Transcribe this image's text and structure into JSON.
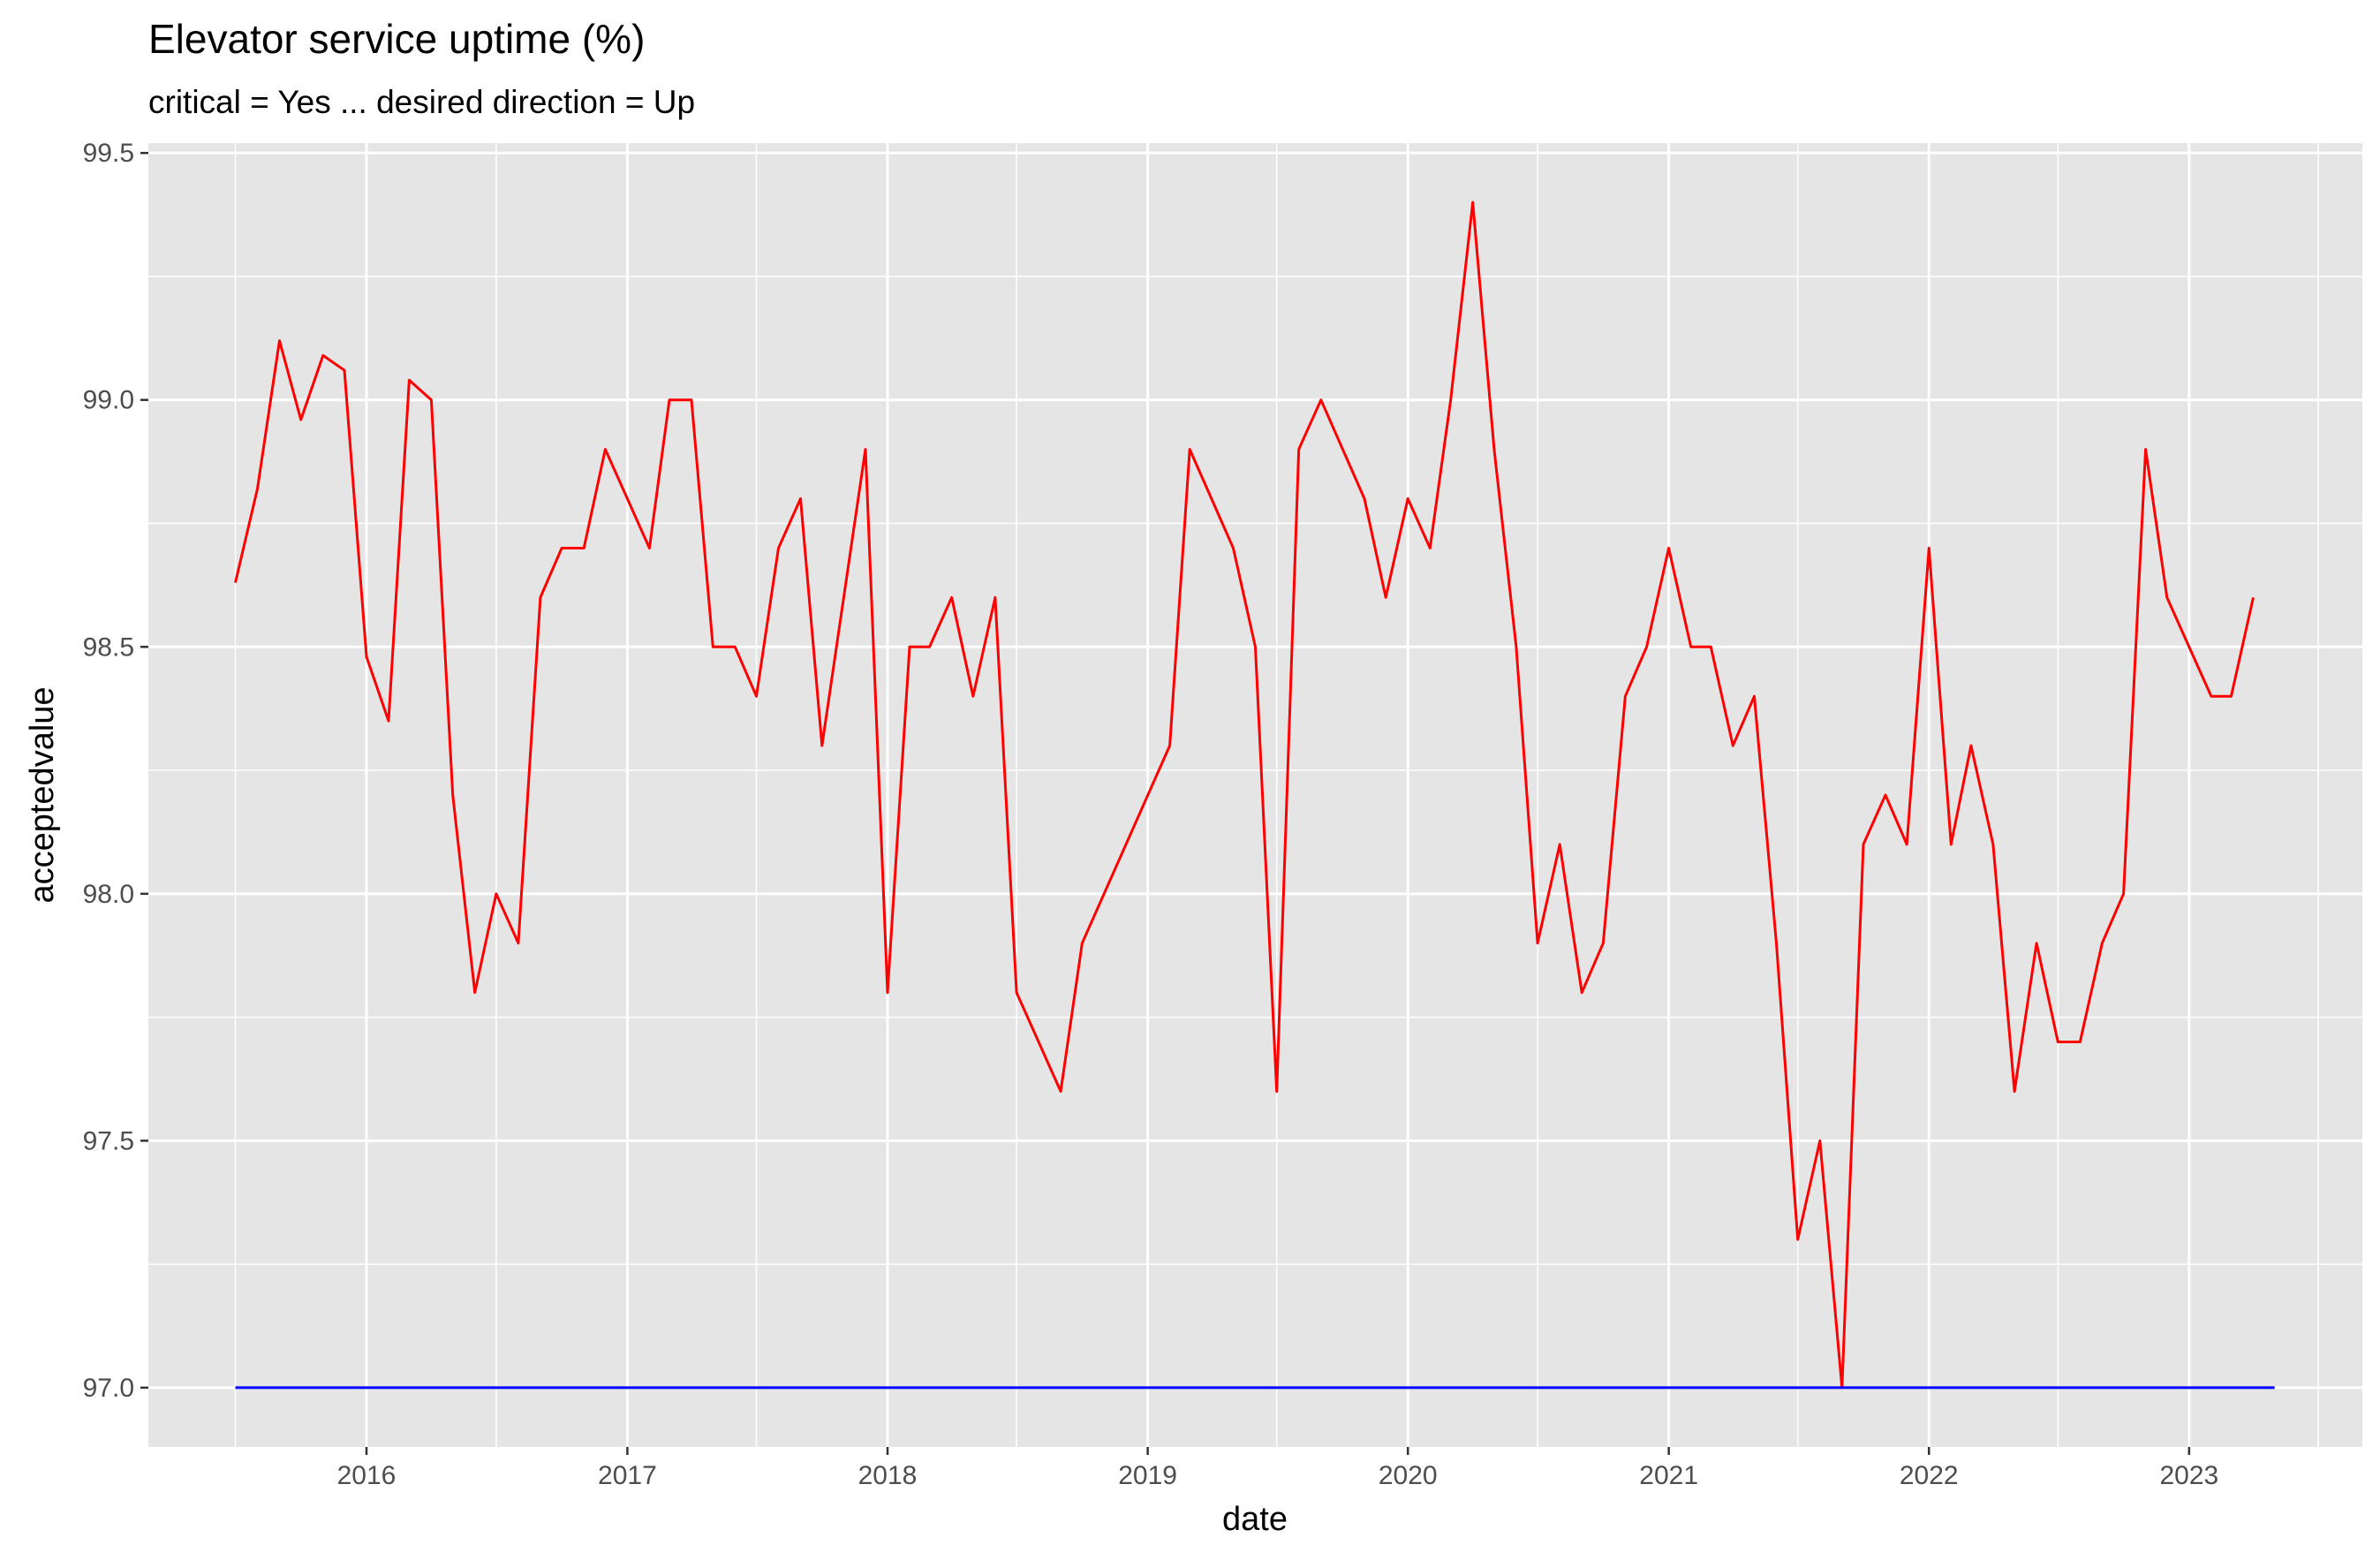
{
  "chart_data": {
    "type": "line",
    "title": "Elevator service uptime (%)",
    "subtitle": "critical = Yes ... desired direction = Up",
    "xlabel": "date",
    "ylabel": "acceptedvalue",
    "x_type": "date",
    "xlim": [
      "2015-03-01",
      "2023-09-01"
    ],
    "ylim": [
      96.88,
      99.52
    ],
    "x_ticks": [
      "2016",
      "2017",
      "2018",
      "2019",
      "2020",
      "2021",
      "2022",
      "2023"
    ],
    "y_ticks": [
      "97.0",
      "97.5",
      "98.0",
      "98.5",
      "99.0",
      "99.5"
    ],
    "grid": true,
    "legend": "none",
    "colors": {
      "panel": "#e5e5e5",
      "grid": "#ffffff",
      "actual": "#ff0000",
      "target": "#0000ff"
    },
    "series": [
      {
        "color": "#ff0000",
        "x": [
          "2015-07-01",
          "2015-08-01",
          "2015-09-01",
          "2015-10-01",
          "2015-11-01",
          "2015-12-01",
          "2016-01-01",
          "2016-02-01",
          "2016-03-01",
          "2016-04-01",
          "2016-05-01",
          "2016-06-01",
          "2016-07-01",
          "2016-08-01",
          "2016-09-01",
          "2016-10-01",
          "2016-11-01",
          "2016-12-01",
          "2017-02-01",
          "2017-03-01",
          "2017-04-01",
          "2017-05-01",
          "2017-06-01",
          "2017-07-01",
          "2017-08-01",
          "2017-09-01",
          "2017-10-01",
          "2017-12-01",
          "2018-01-01",
          "2018-02-01",
          "2018-03-01",
          "2018-04-01",
          "2018-05-01",
          "2018-06-01",
          "2018-07-01",
          "2018-09-01",
          "2018-10-01",
          "2019-02-01",
          "2019-03-01",
          "2019-05-01",
          "2019-06-01",
          "2019-07-01",
          "2019-08-01",
          "2019-09-01",
          "2019-11-01",
          "2019-12-01",
          "2020-01-01",
          "2020-02-01",
          "2020-03-01",
          "2020-04-01",
          "2020-05-01",
          "2020-06-01",
          "2020-07-01",
          "2020-08-01",
          "2020-09-01",
          "2020-10-01",
          "2020-11-01",
          "2020-12-01",
          "2021-01-01",
          "2021-02-01",
          "2021-03-01",
          "2021-04-01",
          "2021-05-01",
          "2021-06-01",
          "2021-07-01",
          "2021-08-01",
          "2021-09-01",
          "2021-10-01",
          "2021-11-01",
          "2021-12-01",
          "2022-01-01",
          "2022-02-01",
          "2022-03-01",
          "2022-04-01",
          "2022-05-01",
          "2022-06-01",
          "2022-07-01",
          "2022-08-01",
          "2022-09-01",
          "2022-10-01",
          "2022-11-01",
          "2022-12-01",
          "2023-02-01",
          "2023-03-01",
          "2023-04-01"
        ],
        "values": [
          98.63,
          98.82,
          99.12,
          98.96,
          99.09,
          99.06,
          98.48,
          98.35,
          99.04,
          99.0,
          98.2,
          97.8,
          98.0,
          97.9,
          98.6,
          98.7,
          98.7,
          98.9,
          98.7,
          99.0,
          99.0,
          98.5,
          98.5,
          98.4,
          98.7,
          98.8,
          98.3,
          98.9,
          97.8,
          98.5,
          98.5,
          98.6,
          98.4,
          98.6,
          97.8,
          97.6,
          97.9,
          98.3,
          98.9,
          98.7,
          98.5,
          97.6,
          98.9,
          99.0,
          98.8,
          98.6,
          98.8,
          98.7,
          99.0,
          99.4,
          98.9,
          98.5,
          97.9,
          98.1,
          97.8,
          97.9,
          98.4,
          98.5,
          98.7,
          98.5,
          98.5,
          98.3,
          98.4,
          97.9,
          97.3,
          97.5,
          97.0,
          98.1,
          98.2,
          98.1,
          98.7,
          98.1,
          98.3,
          98.1,
          97.6,
          97.9,
          97.7,
          97.7,
          97.9,
          98.0,
          98.9,
          98.6,
          98.4,
          98.4,
          98.6
        ]
      },
      {
        "color": "#0000ff",
        "x": [
          "2015-07-01",
          "2023-05-01"
        ],
        "values": [
          97.0,
          97.0
        ]
      }
    ]
  }
}
